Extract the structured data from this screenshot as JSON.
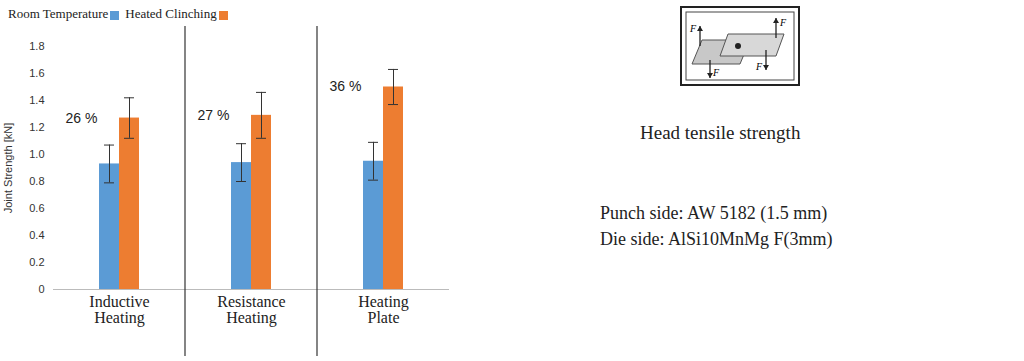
{
  "chart_data": {
    "type": "bar",
    "categories": [
      "Inductive Heating",
      "Resistance Heating",
      "Heating Plate"
    ],
    "series": [
      {
        "name": "Room Temperature",
        "color": "#5b9bd5",
        "values": [
          0.93,
          0.94,
          0.95
        ],
        "errors": [
          0.14,
          0.14,
          0.14
        ]
      },
      {
        "name": "Heated Clinching",
        "color": "#ed7d31",
        "values": [
          1.27,
          1.29,
          1.5
        ],
        "errors": [
          0.15,
          0.17,
          0.13
        ]
      }
    ],
    "annotations": [
      "26 %",
      "27 %",
      "36 %"
    ],
    "y_label": "Joint Strength [kN]",
    "ylim": [
      0,
      1.8
    ],
    "yticks": [
      0,
      0.2,
      0.4,
      0.6,
      0.8,
      {
        "value": 1,
        "label": "1.0"
      },
      1.2,
      1.4,
      1.6,
      1.8
    ],
    "grid": false,
    "legend": "top-left"
  },
  "side_panel": {
    "icon_label": "F",
    "caption": "Head tensile strength",
    "lines": [
      "Punch side: AW 5182 (1.5 mm)",
      "Die side: AlSi10MnMg F(3mm)"
    ]
  }
}
